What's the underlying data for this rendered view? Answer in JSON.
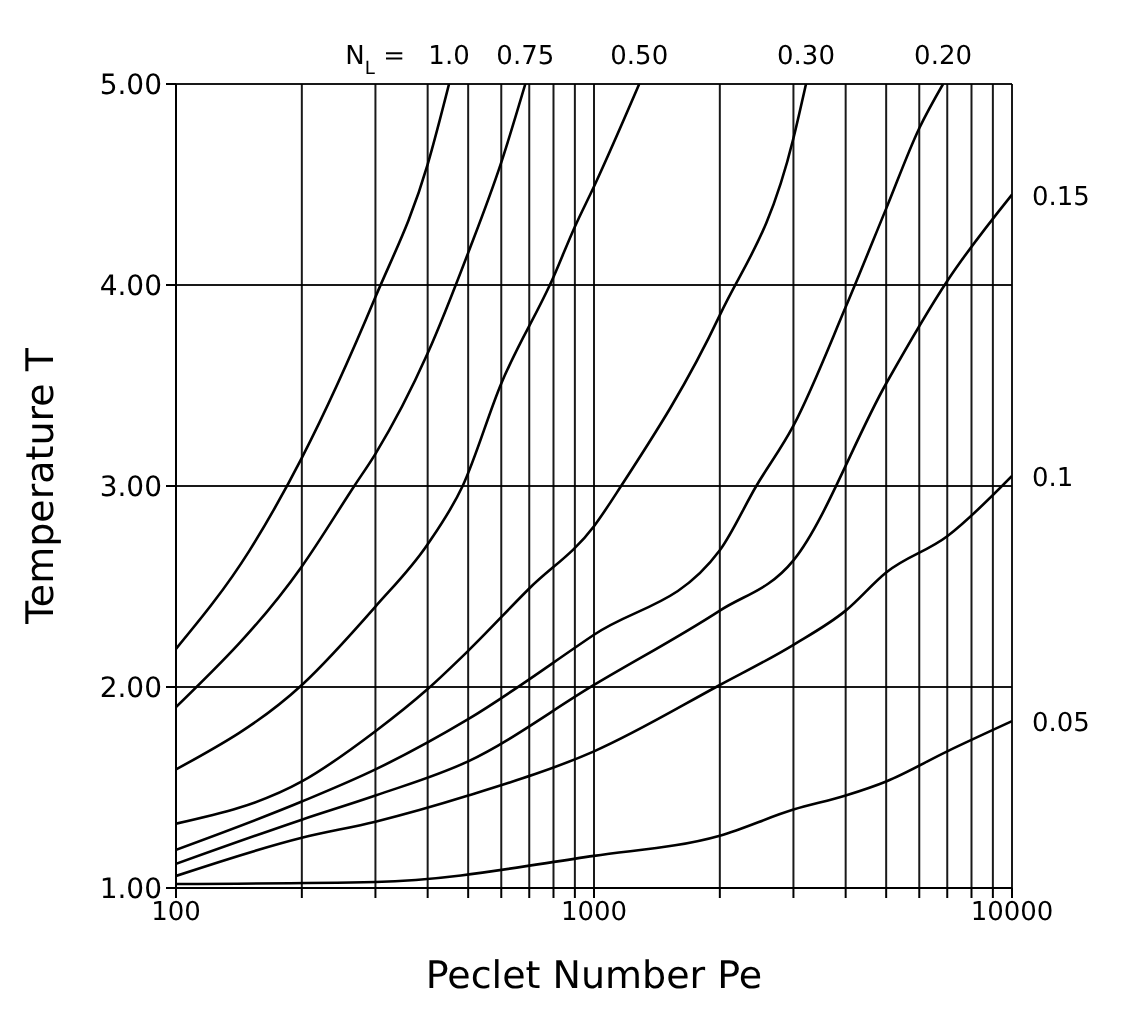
{
  "chart_data": {
    "type": "line",
    "xlabel": "Peclet Number Pe",
    "ylabel": "Temperature T",
    "legend_title": "N$_{L}$ =",
    "log": "x",
    "grid": true,
    "marker": "none",
    "line_style": "solid",
    "xlim": [
      100,
      10000
    ],
    "ylim": [
      1,
      5
    ],
    "xticks": [
      100,
      {
        "value": 200,
        "label": null
      },
      {
        "value": 300,
        "label": null
      },
      {
        "value": 400,
        "label": null
      },
      {
        "value": 500,
        "label": null
      },
      {
        "value": 600,
        "label": null
      },
      {
        "value": 700,
        "label": null
      },
      {
        "value": 800,
        "label": null
      },
      {
        "value": 900,
        "label": null
      },
      1000,
      {
        "value": 2000,
        "label": null
      },
      {
        "value": 3000,
        "label": null
      },
      {
        "value": 4000,
        "label": null
      },
      {
        "value": 5000,
        "label": null
      },
      {
        "value": 6000,
        "label": null
      },
      {
        "value": 7000,
        "label": null
      },
      {
        "value": 8000,
        "label": null
      },
      {
        "value": 9000,
        "label": null
      },
      10000
    ],
    "yticks": [
      {
        "value": 1,
        "label": "1.00"
      },
      {
        "value": 2,
        "label": "2.00"
      },
      {
        "value": 3,
        "label": "3.00"
      },
      {
        "value": 4,
        "label": "4.00"
      },
      {
        "value": 5,
        "label": "5.00"
      }
    ],
    "series": [
      {
        "name": "1.0",
        "color": "#000000",
        "x": [
          100,
          150,
          200,
          300,
          400,
          450
        ],
        "values": [
          2.19,
          2.68,
          3.14,
          3.94,
          4.6,
          5.0
        ]
      },
      {
        "name": "0.75",
        "color": "#000000",
        "x": [
          100,
          200,
          267,
          300,
          400,
          500,
          600,
          685
        ],
        "values": [
          1.9,
          2.6,
          3.0,
          3.16,
          3.66,
          4.16,
          4.61,
          5.0
        ]
      },
      {
        "name": "0.50",
        "color": "#000000",
        "x": [
          100,
          200,
          300,
          400,
          485,
          600,
          800,
          900,
          1000,
          1283
        ],
        "values": [
          1.59,
          2.01,
          2.4,
          2.71,
          3.0,
          3.51,
          4.04,
          4.29,
          4.49,
          5.0
        ]
      },
      {
        "name": "0.30",
        "color": "#000000",
        "x": [
          100,
          200,
          300,
          400,
          500,
          700,
          1000,
          1161,
          2000,
          3000,
          3215
        ],
        "values": [
          1.32,
          1.53,
          1.78,
          1.99,
          2.18,
          2.49,
          2.8,
          3.0,
          3.85,
          4.73,
          5.0
        ]
      },
      {
        "name": "0.20",
        "color": "#000000",
        "x": [
          100,
          200,
          300,
          500,
          1000,
          2000,
          2445,
          3000,
          4000,
          5000,
          6000,
          6840
        ],
        "values": [
          1.19,
          1.43,
          1.59,
          1.84,
          2.26,
          2.68,
          3.0,
          3.3,
          3.89,
          4.38,
          4.78,
          5.0
        ]
      },
      {
        "name": "0.15",
        "color": "#000000",
        "x": [
          100,
          200,
          300,
          500,
          1000,
          2000,
          3000,
          5000,
          7000,
          10000
        ],
        "values": [
          1.12,
          1.34,
          1.46,
          1.63,
          2.01,
          2.38,
          2.63,
          3.51,
          4.02,
          4.45
        ]
      },
      {
        "name": "0.1",
        "color": "#000000",
        "x": [
          100,
          200,
          300,
          500,
          1000,
          2000,
          3000,
          4000,
          5000,
          7000,
          10000
        ],
        "values": [
          1.06,
          1.25,
          1.33,
          1.46,
          1.68,
          2.01,
          2.21,
          2.38,
          2.57,
          2.75,
          3.05
        ]
      },
      {
        "name": "0.05",
        "color": "#000000",
        "x": [
          100,
          300,
          1000,
          2000,
          3000,
          4000,
          5000,
          7000,
          10000
        ],
        "values": [
          1.02,
          1.03,
          1.16,
          1.26,
          1.39,
          1.46,
          1.53,
          1.68,
          1.83
        ]
      }
    ]
  }
}
